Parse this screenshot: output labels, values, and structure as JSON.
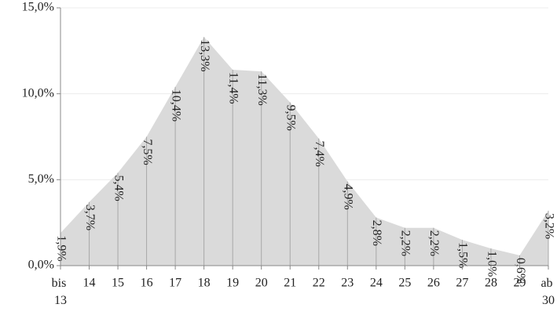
{
  "chart_data": {
    "type": "area",
    "categories": [
      "bis 13",
      "14",
      "15",
      "16",
      "17",
      "18",
      "19",
      "20",
      "21",
      "22",
      "23",
      "24",
      "25",
      "26",
      "27",
      "28",
      "29",
      "ab 30"
    ],
    "values": [
      1.9,
      3.7,
      5.4,
      7.5,
      10.4,
      13.3,
      11.4,
      11.3,
      9.5,
      7.4,
      4.9,
      2.8,
      2.2,
      2.2,
      1.5,
      1.0,
      0.6,
      3.2
    ],
    "value_labels": [
      "1,9%",
      "3,7%",
      "5,4%",
      "7,5%",
      "10,4%",
      "13,3%",
      "11,4%",
      "11,3%",
      "9,5%",
      "7,4%",
      "4,9%",
      "2,8%",
      "2,2%",
      "2,2%",
      "1,5%",
      "1,0%",
      "0,6%",
      "3,2%"
    ],
    "color": "#dadada",
    "ylim": [
      0,
      15
    ],
    "yticks": [
      {
        "value": 0,
        "label": "0,0%"
      },
      {
        "value": 5,
        "label": "5,0%"
      },
      {
        "value": 10,
        "label": "10,0%"
      },
      {
        "value": 15,
        "label": "15,0%"
      }
    ],
    "grid": true
  }
}
